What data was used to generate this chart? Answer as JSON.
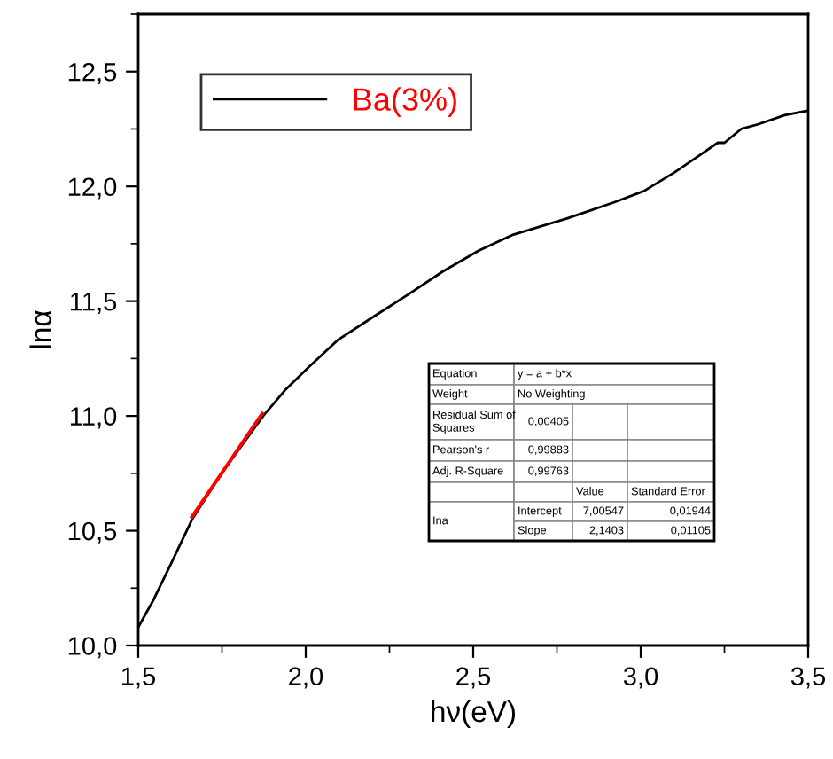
{
  "chart_data": {
    "type": "line",
    "xlabel": "hν(eV)",
    "ylabel": "lnα",
    "xlim": [
      1.5,
      3.5
    ],
    "ylim": [
      10.0,
      12.75
    ],
    "xticks": [
      {
        "value": 1.5,
        "label": "1,5"
      },
      {
        "value": 2.0,
        "label": "2,0"
      },
      {
        "value": 2.5,
        "label": "2,5"
      },
      {
        "value": 3.0,
        "label": "3,0"
      },
      {
        "value": 3.5,
        "label": "3,5"
      }
    ],
    "yticks": [
      {
        "value": 10.0,
        "label": "10,0"
      },
      {
        "value": 10.5,
        "label": "10,5"
      },
      {
        "value": 11.0,
        "label": "11,0"
      },
      {
        "value": 11.5,
        "label": "11,5"
      },
      {
        "value": 12.0,
        "label": "12,0"
      },
      {
        "value": 12.5,
        "label": "12,5"
      }
    ],
    "grid": false,
    "legend": "top left",
    "series": [
      {
        "name": "Ba(3%)",
        "color": "#000000",
        "x": [
          1.5,
          1.546,
          1.599,
          1.661,
          1.749,
          1.873,
          1.937,
          2.007,
          2.095,
          2.2,
          2.307,
          2.41,
          2.516,
          2.62,
          2.78,
          2.92,
          3.01,
          3.1,
          3.17,
          3.23,
          3.25,
          3.3,
          3.35,
          3.43,
          3.5
        ],
        "values": [
          10.08,
          10.2,
          10.36,
          10.55,
          10.75,
          11.0,
          11.11,
          11.21,
          11.33,
          11.43,
          11.53,
          11.63,
          11.72,
          11.79,
          11.86,
          11.93,
          11.98,
          12.06,
          12.13,
          12.19,
          12.19,
          12.25,
          12.27,
          12.31,
          12.33
        ]
      },
      {
        "type": "line",
        "color": "#ff0000",
        "x": [
          1.66,
          1.87
        ],
        "values": [
          10.56,
          11.01
        ]
      }
    ],
    "annotations": [
      "Equation",
      "y = a + b*x",
      "Weight",
      "No Weighting",
      "Residual Sum of Squares",
      "0,00405",
      "Pearson's r",
      "0,99883",
      "Adj. R-Square",
      "0,99763",
      "Value",
      "Standard Error",
      "Ina",
      "Intercept",
      "7,00547",
      "0,01944",
      "Slope",
      "2,1403",
      "0,01105"
    ]
  }
}
